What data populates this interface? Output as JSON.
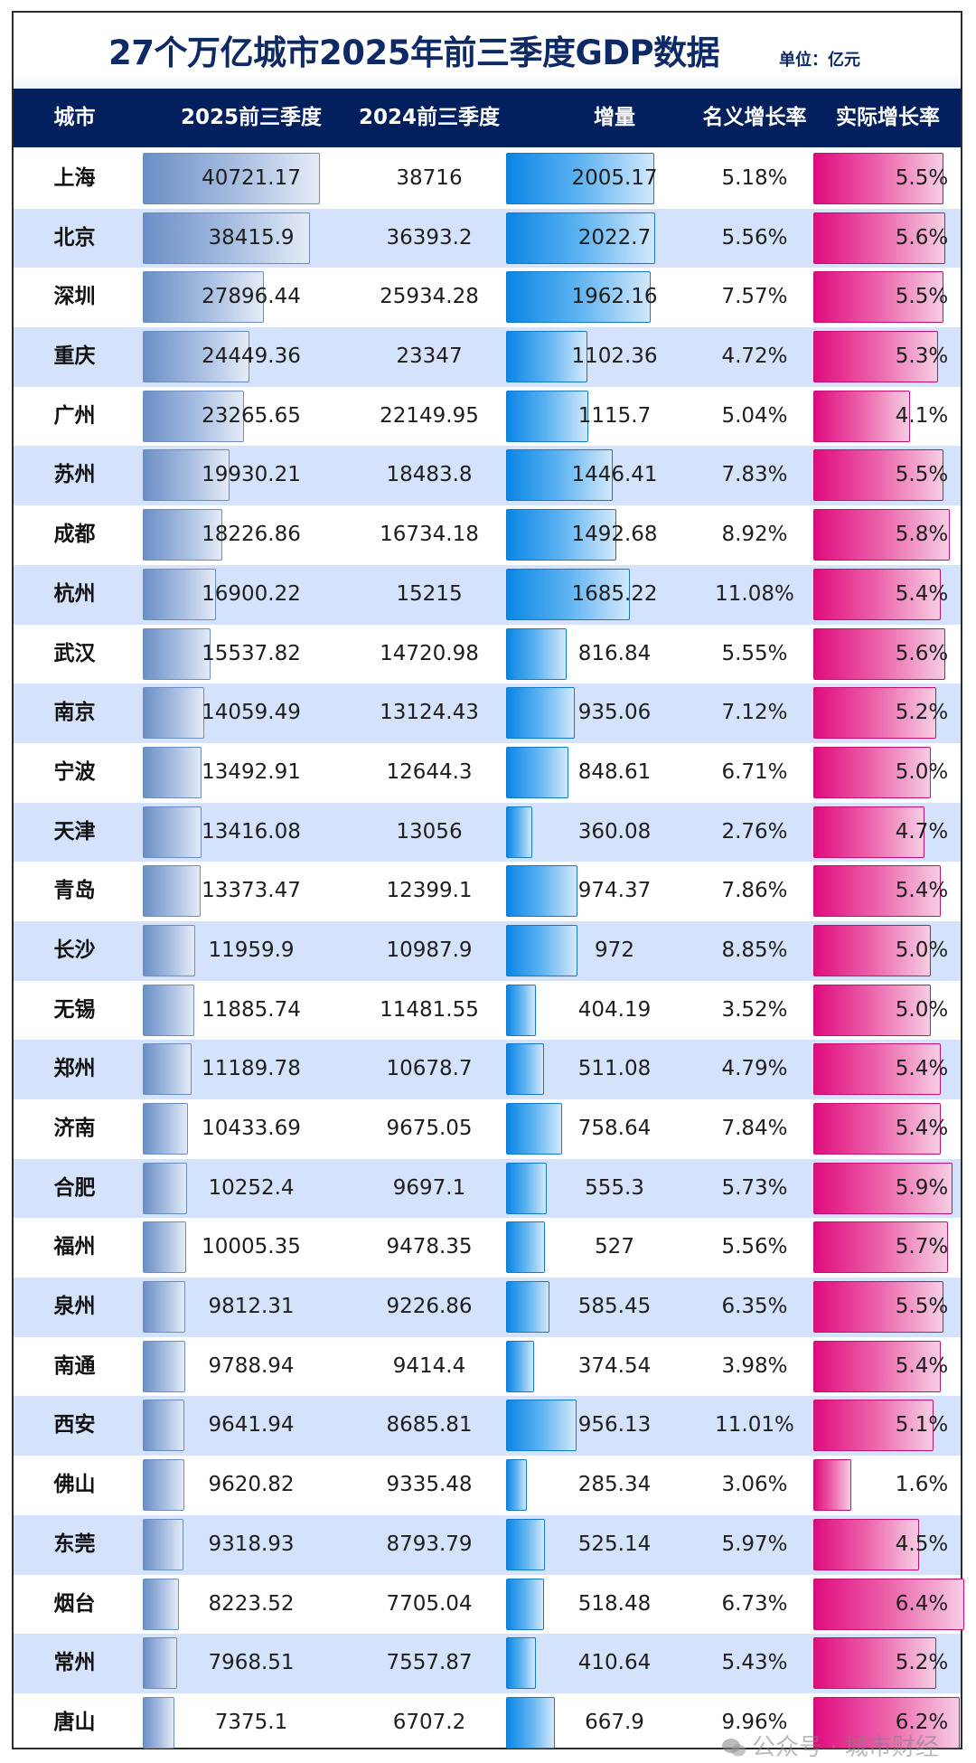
{
  "title": "27个万亿城市2025年前三季度GDP数据",
  "unit": "单位：亿元",
  "headers": [
    "城市",
    "2025前三季度",
    "2024前三季度",
    "增量",
    "名义增长率",
    "实际增长率"
  ],
  "watermark": "公众号 · 城市财经",
  "colors": {
    "title": "#0d2a66",
    "header_bg": "#03205e",
    "row_alt_bg": "#d5e2fb",
    "gdp_bar": "#6b8fc6",
    "increment_bar": "#0a86e6",
    "real_growth_bar": "#e00b7e"
  },
  "rows": [
    {
      "city": "上海",
      "gdp2025": "40721.17",
      "gdp2024": "38716",
      "increment": "2005.17",
      "nominal": "5.18%",
      "real": "5.5%"
    },
    {
      "city": "北京",
      "gdp2025": "38415.9",
      "gdp2024": "36393.2",
      "increment": "2022.7",
      "nominal": "5.56%",
      "real": "5.6%"
    },
    {
      "city": "深圳",
      "gdp2025": "27896.44",
      "gdp2024": "25934.28",
      "increment": "1962.16",
      "nominal": "7.57%",
      "real": "5.5%"
    },
    {
      "city": "重庆",
      "gdp2025": "24449.36",
      "gdp2024": "23347",
      "increment": "1102.36",
      "nominal": "4.72%",
      "real": "5.3%"
    },
    {
      "city": "广州",
      "gdp2025": "23265.65",
      "gdp2024": "22149.95",
      "increment": "1115.7",
      "nominal": "5.04%",
      "real": "4.1%"
    },
    {
      "city": "苏州",
      "gdp2025": "19930.21",
      "gdp2024": "18483.8",
      "increment": "1446.41",
      "nominal": "7.83%",
      "real": "5.5%"
    },
    {
      "city": "成都",
      "gdp2025": "18226.86",
      "gdp2024": "16734.18",
      "increment": "1492.68",
      "nominal": "8.92%",
      "real": "5.8%"
    },
    {
      "city": "杭州",
      "gdp2025": "16900.22",
      "gdp2024": "15215",
      "increment": "1685.22",
      "nominal": "11.08%",
      "real": "5.4%"
    },
    {
      "city": "武汉",
      "gdp2025": "15537.82",
      "gdp2024": "14720.98",
      "increment": "816.84",
      "nominal": "5.55%",
      "real": "5.6%"
    },
    {
      "city": "南京",
      "gdp2025": "14059.49",
      "gdp2024": "13124.43",
      "increment": "935.06",
      "nominal": "7.12%",
      "real": "5.2%"
    },
    {
      "city": "宁波",
      "gdp2025": "13492.91",
      "gdp2024": "12644.3",
      "increment": "848.61",
      "nominal": "6.71%",
      "real": "5.0%"
    },
    {
      "city": "天津",
      "gdp2025": "13416.08",
      "gdp2024": "13056",
      "increment": "360.08",
      "nominal": "2.76%",
      "real": "4.7%"
    },
    {
      "city": "青岛",
      "gdp2025": "13373.47",
      "gdp2024": "12399.1",
      "increment": "974.37",
      "nominal": "7.86%",
      "real": "5.4%"
    },
    {
      "city": "长沙",
      "gdp2025": "11959.9",
      "gdp2024": "10987.9",
      "increment": "972",
      "nominal": "8.85%",
      "real": "5.0%"
    },
    {
      "city": "无锡",
      "gdp2025": "11885.74",
      "gdp2024": "11481.55",
      "increment": "404.19",
      "nominal": "3.52%",
      "real": "5.0%"
    },
    {
      "city": "郑州",
      "gdp2025": "11189.78",
      "gdp2024": "10678.7",
      "increment": "511.08",
      "nominal": "4.79%",
      "real": "5.4%"
    },
    {
      "city": "济南",
      "gdp2025": "10433.69",
      "gdp2024": "9675.05",
      "increment": "758.64",
      "nominal": "7.84%",
      "real": "5.4%"
    },
    {
      "city": "合肥",
      "gdp2025": "10252.4",
      "gdp2024": "9697.1",
      "increment": "555.3",
      "nominal": "5.73%",
      "real": "5.9%"
    },
    {
      "city": "福州",
      "gdp2025": "10005.35",
      "gdp2024": "9478.35",
      "increment": "527",
      "nominal": "5.56%",
      "real": "5.7%"
    },
    {
      "city": "泉州",
      "gdp2025": "9812.31",
      "gdp2024": "9226.86",
      "increment": "585.45",
      "nominal": "6.35%",
      "real": "5.5%"
    },
    {
      "city": "南通",
      "gdp2025": "9788.94",
      "gdp2024": "9414.4",
      "increment": "374.54",
      "nominal": "3.98%",
      "real": "5.4%"
    },
    {
      "city": "西安",
      "gdp2025": "9641.94",
      "gdp2024": "8685.81",
      "increment": "956.13",
      "nominal": "11.01%",
      "real": "5.1%"
    },
    {
      "city": "佛山",
      "gdp2025": "9620.82",
      "gdp2024": "9335.48",
      "increment": "285.34",
      "nominal": "3.06%",
      "real": "1.6%"
    },
    {
      "city": "东莞",
      "gdp2025": "9318.93",
      "gdp2024": "8793.79",
      "increment": "525.14",
      "nominal": "5.97%",
      "real": "4.5%"
    },
    {
      "city": "烟台",
      "gdp2025": "8223.52",
      "gdp2024": "7705.04",
      "increment": "518.48",
      "nominal": "6.73%",
      "real": "6.4%"
    },
    {
      "city": "常州",
      "gdp2025": "7968.51",
      "gdp2024": "7557.87",
      "increment": "410.64",
      "nominal": "5.43%",
      "real": "5.2%"
    },
    {
      "city": "唐山",
      "gdp2025": "7375.1",
      "gdp2024": "6707.2",
      "increment": "667.9",
      "nominal": "9.96%",
      "real": "6.2%"
    }
  ],
  "chart_data": {
    "type": "table",
    "title": "27个万亿城市2025年前三季度GDP数据",
    "subtitle": "单位：亿元",
    "columns": [
      "城市",
      "2025前三季度",
      "2024前三季度",
      "增量",
      "名义增长率",
      "实际增长率"
    ],
    "categories": [
      "上海",
      "北京",
      "深圳",
      "重庆",
      "广州",
      "苏州",
      "成都",
      "杭州",
      "武汉",
      "南京",
      "宁波",
      "天津",
      "青岛",
      "长沙",
      "无锡",
      "郑州",
      "济南",
      "合肥",
      "福州",
      "泉州",
      "南通",
      "西安",
      "佛山",
      "东莞",
      "烟台",
      "常州",
      "唐山"
    ],
    "series": [
      {
        "name": "2025前三季度",
        "bar": true,
        "values": [
          40721.17,
          38415.9,
          27896.44,
          24449.36,
          23265.65,
          19930.21,
          18226.86,
          16900.22,
          15537.82,
          14059.49,
          13492.91,
          13416.08,
          13373.47,
          11959.9,
          11885.74,
          11189.78,
          10433.69,
          10252.4,
          10005.35,
          9812.31,
          9788.94,
          9641.94,
          9620.82,
          9318.93,
          8223.52,
          7968.51,
          7375.1
        ]
      },
      {
        "name": "2024前三季度",
        "bar": false,
        "values": [
          38716,
          36393.2,
          25934.28,
          23347,
          22149.95,
          18483.8,
          16734.18,
          15215,
          14720.98,
          13124.43,
          12644.3,
          13056,
          12399.1,
          10987.9,
          11481.55,
          10678.7,
          9675.05,
          9697.1,
          9478.35,
          9226.86,
          9414.4,
          8685.81,
          9335.48,
          8793.79,
          7705.04,
          7557.87,
          6707.2
        ]
      },
      {
        "name": "增量",
        "bar": true,
        "values": [
          2005.17,
          2022.7,
          1962.16,
          1102.36,
          1115.7,
          1446.41,
          1492.68,
          1685.22,
          816.84,
          935.06,
          848.61,
          360.08,
          974.37,
          972,
          404.19,
          511.08,
          758.64,
          555.3,
          527,
          585.45,
          374.54,
          956.13,
          285.34,
          525.14,
          518.48,
          410.64,
          667.9
        ]
      },
      {
        "name": "名义增长率(%)",
        "bar": false,
        "values": [
          5.18,
          5.56,
          7.57,
          4.72,
          5.04,
          7.83,
          8.92,
          11.08,
          5.55,
          7.12,
          6.71,
          2.76,
          7.86,
          8.85,
          3.52,
          4.79,
          7.84,
          5.73,
          5.56,
          6.35,
          3.98,
          11.01,
          3.06,
          5.97,
          6.73,
          5.43,
          9.96
        ]
      },
      {
        "name": "实际增长率(%)",
        "bar": true,
        "values": [
          5.5,
          5.6,
          5.5,
          5.3,
          4.1,
          5.5,
          5.8,
          5.4,
          5.6,
          5.2,
          5.0,
          4.7,
          5.4,
          5.0,
          5.0,
          5.4,
          5.4,
          5.9,
          5.7,
          5.5,
          5.4,
          5.1,
          1.6,
          4.5,
          6.4,
          5.2,
          6.2
        ]
      }
    ]
  }
}
